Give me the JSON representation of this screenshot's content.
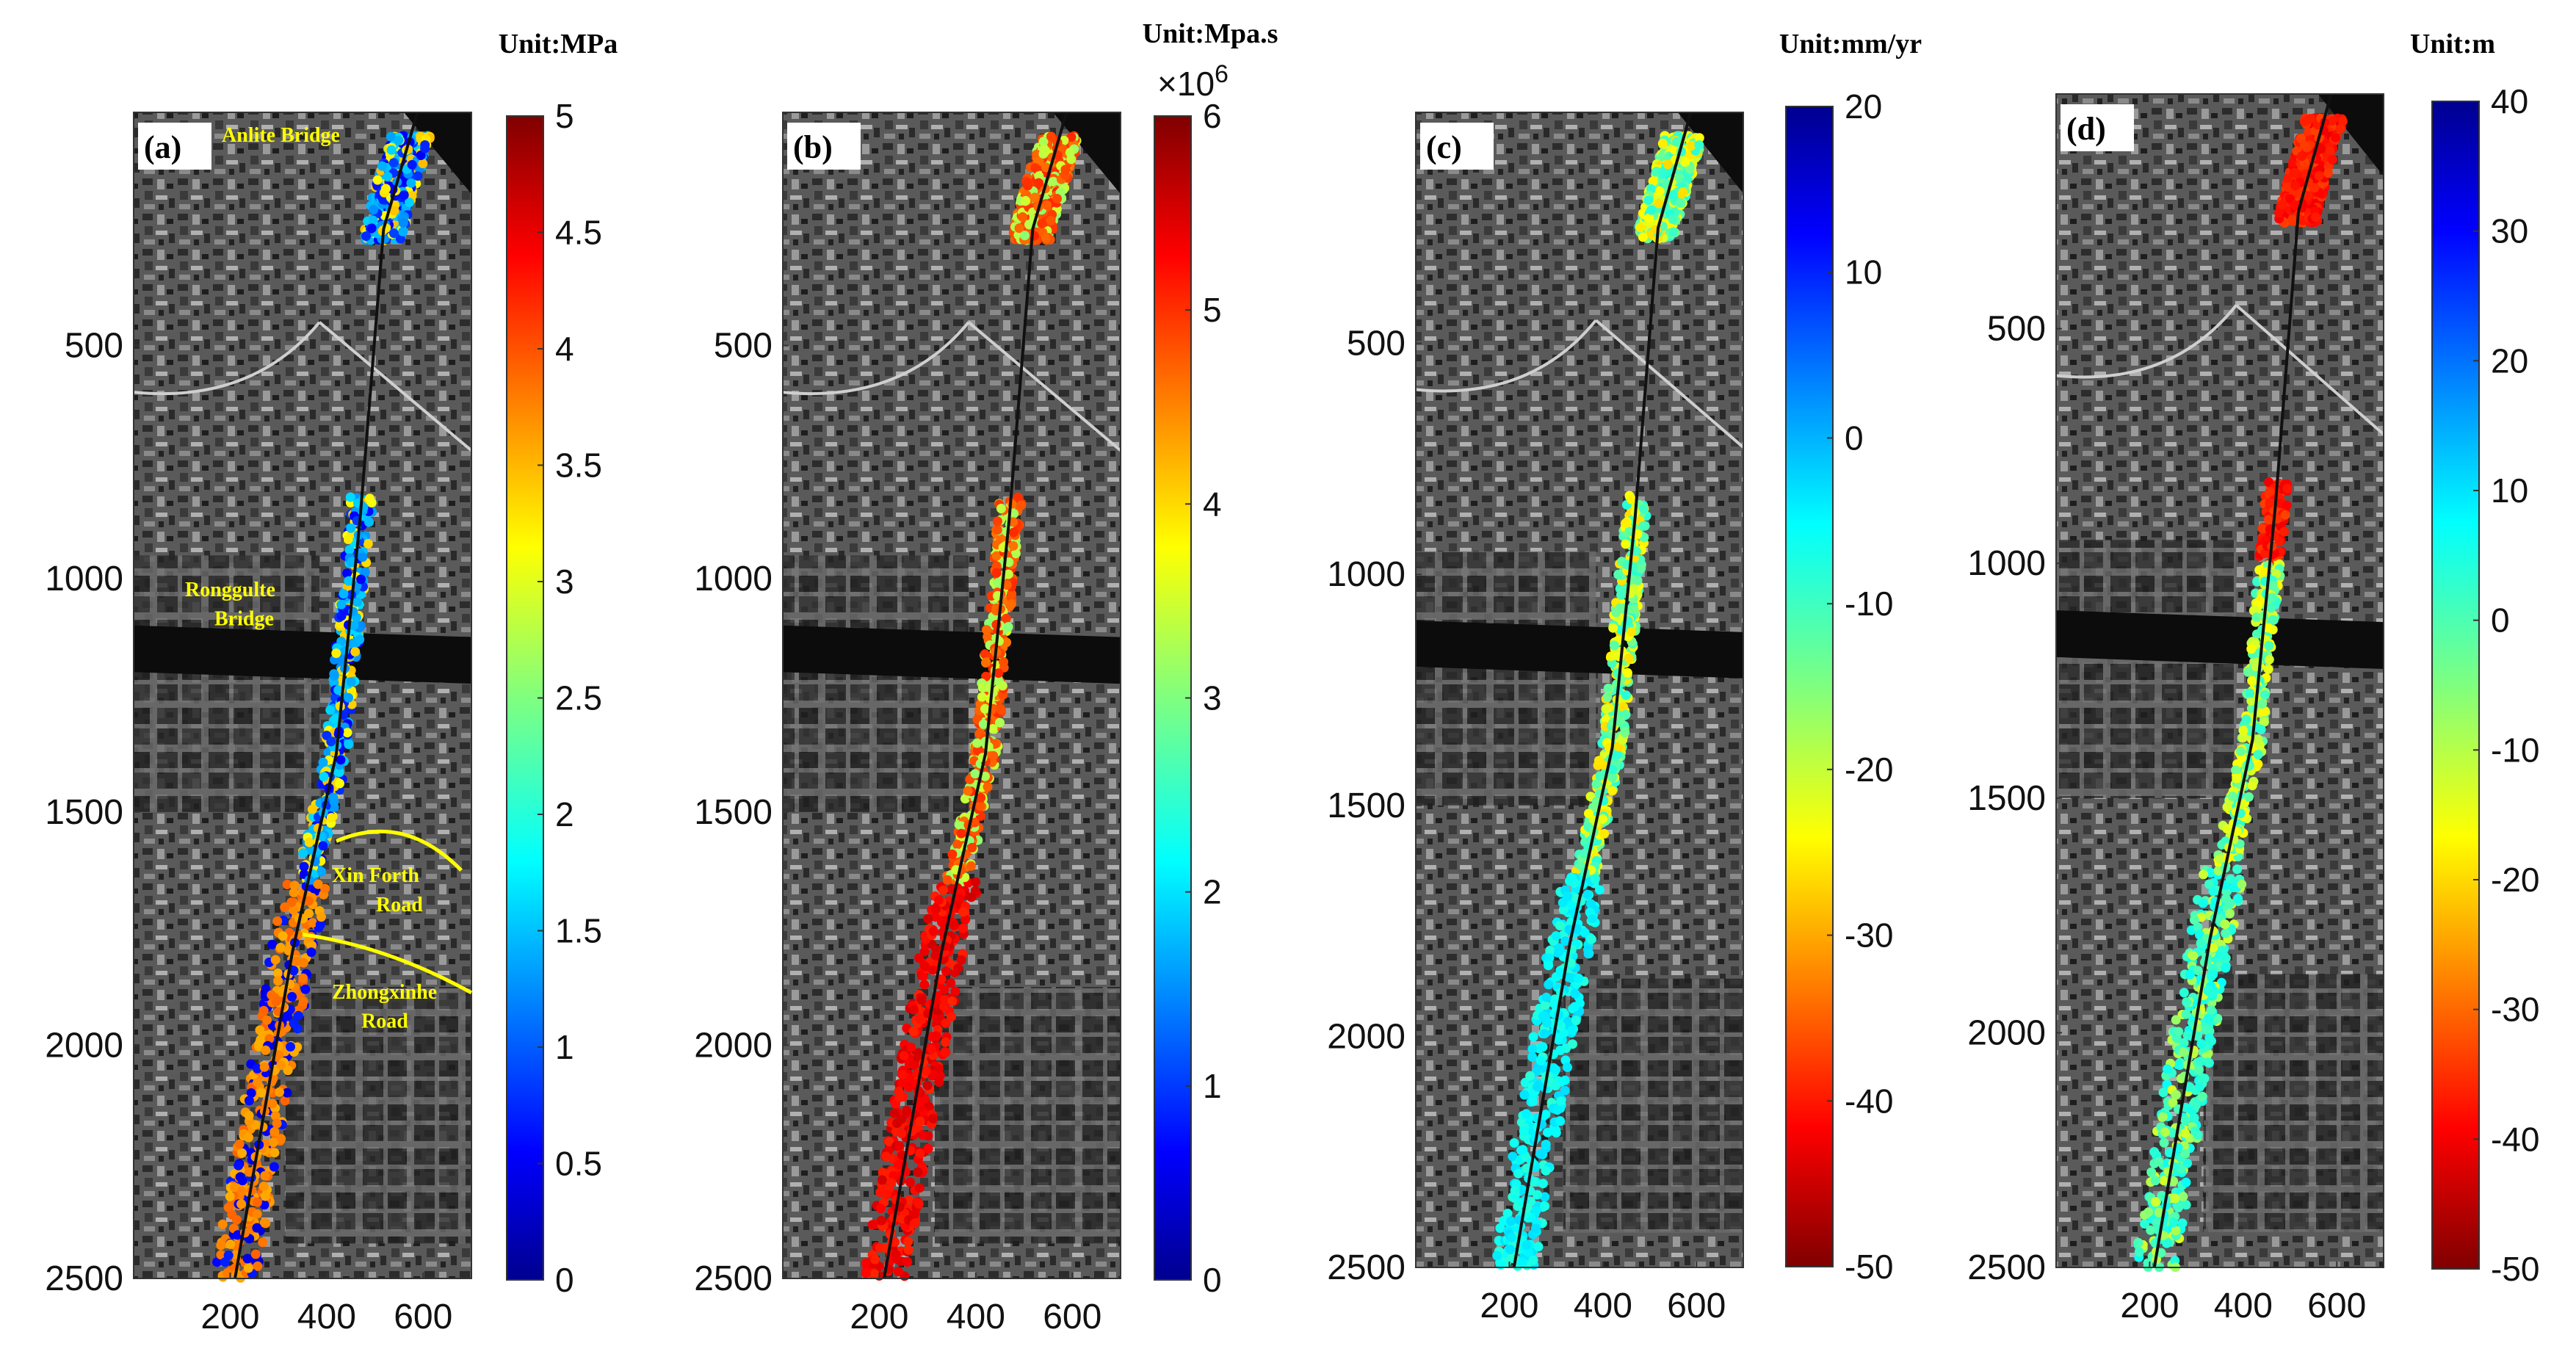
{
  "panels": [
    {
      "id": "a",
      "label": "(a)",
      "unit": "Unit:MPa",
      "exponent_base": "",
      "exponent_power": "",
      "cbar": {
        "colormap": "jet",
        "reverse": false,
        "min": 0,
        "max": 5,
        "ticks": [
          "0",
          "0.5",
          "1",
          "1.5",
          "2",
          "2.5",
          "3",
          "3.5",
          "4",
          "4.5",
          "5"
        ],
        "tick_values": [
          0,
          0.5,
          1,
          1.5,
          2,
          2.5,
          3,
          3.5,
          4,
          4.5,
          5
        ]
      },
      "y_ticks": [
        "500",
        "1000",
        "1500",
        "2000",
        "2500"
      ],
      "x_ticks": [
        "200",
        "400",
        "600"
      ],
      "annotations": [
        "Anlite Bridge",
        "Ronggulte",
        "Bridge",
        "Xin Forth",
        "Road",
        "Zhongxinhe",
        "Road"
      ]
    },
    {
      "id": "b",
      "label": "(b)",
      "unit": "Unit:Mpa.s",
      "exponent_base": "×10",
      "exponent_power": "6",
      "cbar": {
        "colormap": "jet",
        "reverse": false,
        "min": 0,
        "max": 6,
        "ticks": [
          "0",
          "1",
          "2",
          "3",
          "4",
          "5",
          "6"
        ],
        "tick_values": [
          0,
          1,
          2,
          3,
          4,
          5,
          6
        ]
      },
      "y_ticks": [
        "500",
        "1000",
        "1500",
        "2000",
        "2500"
      ],
      "x_ticks": [
        "200",
        "400",
        "600"
      ],
      "annotations": []
    },
    {
      "id": "c",
      "label": "(c)",
      "unit": "Unit:mm/yr",
      "exponent_base": "",
      "exponent_power": "",
      "cbar": {
        "colormap": "jet",
        "reverse": true,
        "min": -50,
        "max": 20,
        "ticks": [
          "-50",
          "-40",
          "-30",
          "-20",
          "-10",
          "0",
          "10",
          "20"
        ],
        "tick_values": [
          -50,
          -40,
          -30,
          -20,
          -10,
          0,
          10,
          20
        ]
      },
      "y_ticks": [
        "500",
        "1000",
        "1500",
        "2000",
        "2500"
      ],
      "x_ticks": [
        "200",
        "400",
        "600"
      ],
      "annotations": []
    },
    {
      "id": "d",
      "label": "(d)",
      "unit": "Unit:m",
      "exponent_base": "",
      "exponent_power": "",
      "cbar": {
        "colormap": "jet",
        "reverse": true,
        "min": -50,
        "max": 40,
        "ticks": [
          "-50",
          "-40",
          "-30",
          "-20",
          "-10",
          "0",
          "10",
          "20",
          "30",
          "40"
        ],
        "tick_values": [
          -50,
          -40,
          -30,
          -20,
          -10,
          0,
          10,
          20,
          30,
          40
        ]
      },
      "y_ticks": [
        "500",
        "1000",
        "1500",
        "2000",
        "2500"
      ],
      "x_ticks": [
        "200",
        "400",
        "600"
      ],
      "annotations": []
    }
  ],
  "axis_range": {
    "y": [
      0,
      2500
    ],
    "x": [
      0,
      700
    ]
  },
  "colors": {
    "annotation": "#ffff00",
    "background": "#ffffff"
  }
}
